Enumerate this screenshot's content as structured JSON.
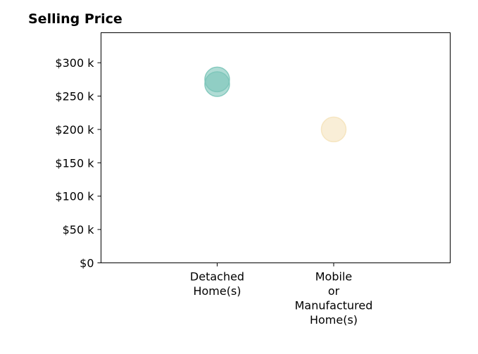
{
  "chart_data": {
    "type": "scatter",
    "title": "Selling Price",
    "xlabel": "",
    "ylabel": "",
    "categories": [
      "Detached Home(s)",
      "Mobile or Manufactured Home(s)"
    ],
    "category_lines": [
      [
        "Detached",
        "Home(s)"
      ],
      [
        "Mobile",
        "or",
        "Manufactured",
        "Home(s)"
      ]
    ],
    "points": [
      {
        "category": "Detached Home(s)",
        "value": 275000,
        "color": "#7cc5b9"
      },
      {
        "category": "Detached Home(s)",
        "value": 268000,
        "color": "#7cc5b9"
      },
      {
        "category": "Mobile or Manufactured Home(s)",
        "value": 200000,
        "color": "#f5e3bd"
      }
    ],
    "yticks": [
      0,
      50000,
      100000,
      150000,
      200000,
      250000,
      300000
    ],
    "ytick_labels": [
      "$0",
      "$50 k",
      "$100 k",
      "$150 k",
      "$200 k",
      "$250 k",
      "$300 k"
    ],
    "ylim": [
      0,
      345000
    ],
    "grid": false
  }
}
